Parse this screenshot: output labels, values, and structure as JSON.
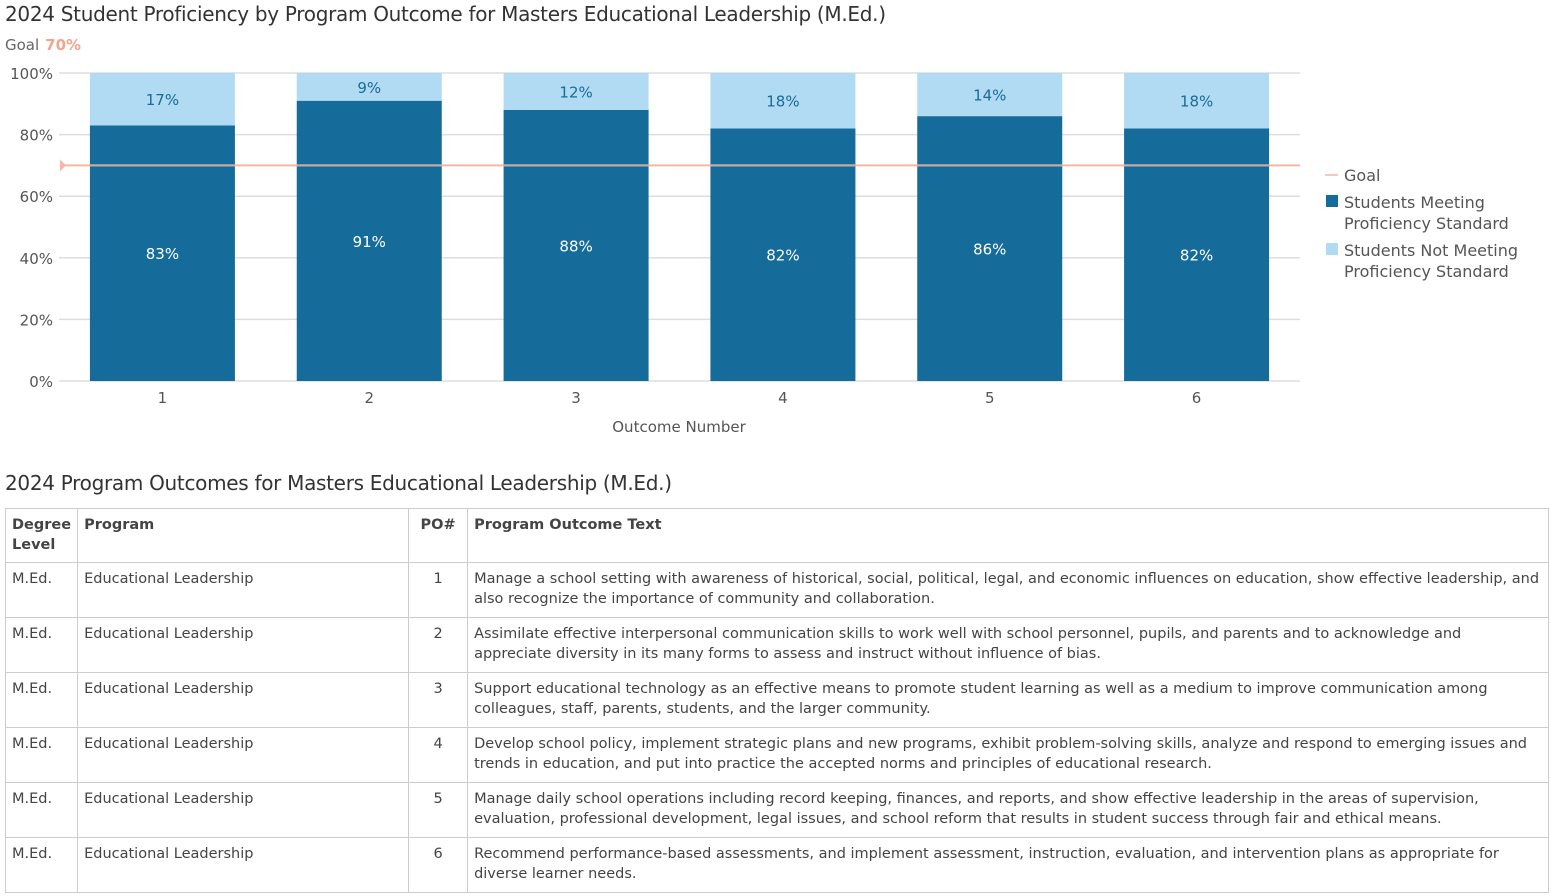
{
  "chart_data": {
    "type": "bar",
    "stacked": true,
    "title": "2024 Student Proficiency by Program Outcome for Masters Educational Leadership (M.Ed.)",
    "goal_label": "Goal",
    "goal_value": "70%",
    "goal": 70,
    "xlabel": "Outcome Number",
    "ylabel": "",
    "ylim": [
      0,
      100
    ],
    "yticks": [
      "0%",
      "20%",
      "40%",
      "60%",
      "80%",
      "100%"
    ],
    "categories": [
      "1",
      "2",
      "3",
      "4",
      "5",
      "6"
    ],
    "series": [
      {
        "name": "Students Meeting Proficiency Standard",
        "values": [
          83,
          91,
          88,
          82,
          86,
          82
        ],
        "labels": [
          "83%",
          "91%",
          "88%",
          "82%",
          "86%",
          "82%"
        ],
        "color": "#156b99"
      },
      {
        "name": "Students Not Meeting Proficiency Standard",
        "values": [
          17,
          9,
          12,
          18,
          14,
          18
        ],
        "labels": [
          "17%",
          "9%",
          "12%",
          "18%",
          "14%",
          "18%"
        ],
        "color": "#b0dbf2"
      }
    ],
    "legend": {
      "position": "right",
      "items": [
        "Goal",
        "Students Meeting Proficiency Standard",
        "Students Not Meeting Proficiency Standard"
      ]
    },
    "goal_color": "#f6b6a4",
    "grid": true
  },
  "table": {
    "title": "2024 Program Outcomes for Masters Educational Leadership (M.Ed.)",
    "headers": [
      "Degree Level",
      "Program",
      "PO#",
      "Program Outcome Text"
    ],
    "rows": [
      [
        "M.Ed.",
        "Educational Leadership",
        "1",
        "Manage a school setting with awareness of historical, social, political, legal, and economic influences on education, show effective leadership, and also recognize the importance of community and collaboration."
      ],
      [
        "M.Ed.",
        "Educational Leadership",
        "2",
        "Assimilate effective interpersonal communication skills to work well with school personnel, pupils, and parents and to acknowledge and appreciate diversity in its many forms to assess and instruct without influence of bias."
      ],
      [
        "M.Ed.",
        "Educational Leadership",
        "3",
        "Support educational technology as an effective means to promote student learning as well as a medium to improve communication among colleagues, staff, parents, students, and the larger community."
      ],
      [
        "M.Ed.",
        "Educational Leadership",
        "4",
        "Develop school policy, implement strategic plans and new programs, exhibit problem-solving skills, analyze and respond to emerging issues and trends in education, and put into practice the accepted norms and principles of educational research."
      ],
      [
        "M.Ed.",
        "Educational Leadership",
        "5",
        "Manage daily school operations including record keeping, finances, and reports, and show effective leadership in the areas of supervision, evaluation, professional development, legal issues, and school reform that results in student success through fair and ethical means."
      ],
      [
        "M.Ed.",
        "Educational Leadership",
        "6",
        "Recommend performance-based assessments, and implement assessment, instruction, evaluation, and intervention plans as appropriate for diverse learner needs."
      ]
    ]
  }
}
